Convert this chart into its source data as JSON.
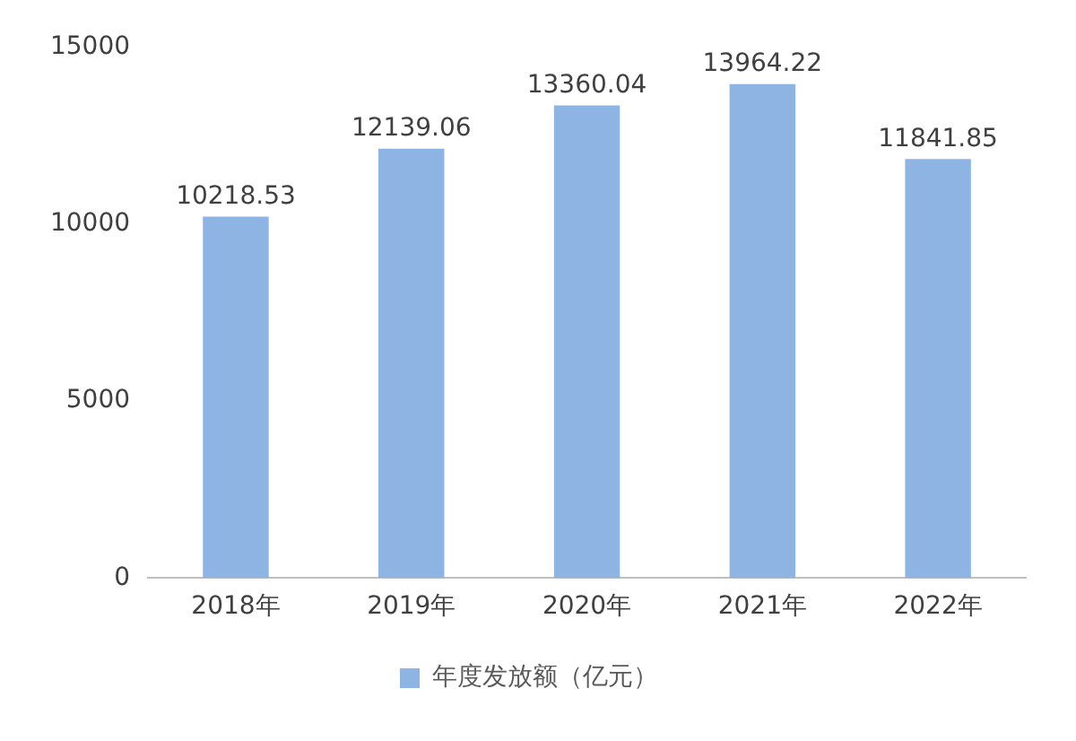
{
  "chart_data": {
    "type": "bar",
    "categories": [
      "2018年",
      "2019年",
      "2020年",
      "2021年",
      "2022年"
    ],
    "series": [
      {
        "name": "年度发放额（亿元）",
        "color": "#8db4e2",
        "values": [
          10218.53,
          12139.06,
          13360.04,
          13964.22,
          11841.85
        ]
      }
    ],
    "ylim": [
      0,
      15000
    ],
    "yticks": [
      0,
      5000,
      10000,
      15000
    ],
    "grid": false,
    "legend": "bottom",
    "data_labels": true
  }
}
